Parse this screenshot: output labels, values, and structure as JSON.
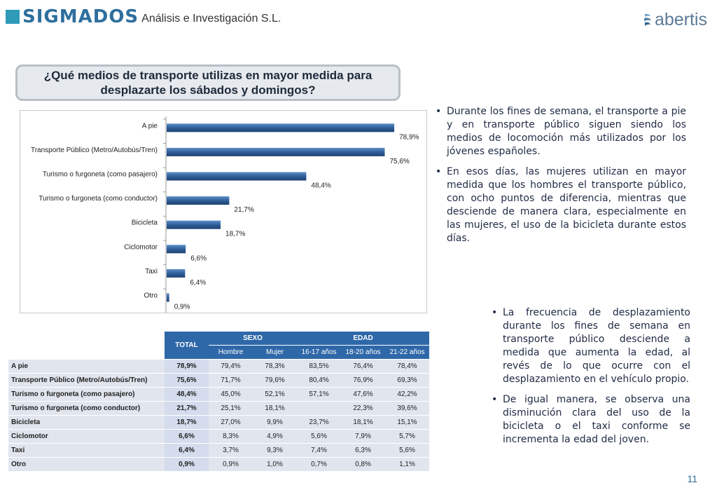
{
  "header": {
    "logo_text": "SIGMADOS",
    "logo_subtitle": "Análisis e Investigación S.L.",
    "brand_right": "abertis"
  },
  "question": "¿Qué medios de transporte utilizas en mayor medida para desplazarte los sábados y domingos?",
  "chart_data": {
    "type": "bar",
    "orientation": "horizontal",
    "categories": [
      "A pie",
      "Transporte Público (Metro/Autobús/Tren)",
      "Turismo o furgoneta (como pasajero)",
      "Turismo o furgoneta (como conductor)",
      "Bicicleta",
      "Ciclomotor",
      "Taxi",
      "Otro"
    ],
    "values": [
      78.9,
      75.6,
      48.4,
      21.7,
      18.7,
      6.6,
      6.4,
      0.9
    ],
    "value_labels": [
      "78,9%",
      "75,6%",
      "48,4%",
      "21,7%",
      "18,7%",
      "6,6%",
      "6,4%",
      "0,9%"
    ],
    "xlim": [
      0,
      100
    ],
    "grid": false,
    "bar_color": "#2f5f9a"
  },
  "bullets_top": [
    "Durante los fines de semana, el transporte a pie y en transporte público siguen siendo los medios de locomoción más utilizados por los jóvenes españoles.",
    "En esos días, las mujeres utilizan en mayor medida que los hombres el transporte público, con ocho puntos de diferencia, mientras que desciende de manera clara, especialmente en las mujeres, el uso de la bicicleta durante estos días."
  ],
  "bullets_bottom": [
    "La frecuencia de desplazamiento durante los fines de semana en transporte público desciende a medida que aumenta la edad, al revés de lo que ocurre con el desplazamiento en el vehículo propio.",
    "De igual manera, se observa una disminución clara del uso de la bicicleta o el taxi conforme se incrementa la edad del joven."
  ],
  "table": {
    "total_header": "TOTAL",
    "group_sexo": "SEXO",
    "group_edad": "EDAD",
    "subheaders": [
      "Hombre",
      "Mujer",
      "16-17 años",
      "18-20 años",
      "21-22 años"
    ],
    "rows": [
      {
        "label": "A pie",
        "total": "78,9%",
        "cells": [
          "79,4%",
          "78,3%",
          "83,5%",
          "76,4%",
          "78,4%"
        ]
      },
      {
        "label": "Transporte Público (Metro/Autobús/Tren)",
        "total": "75,6%",
        "cells": [
          "71,7%",
          "79,6%",
          "80,4%",
          "76,9%",
          "69,3%"
        ]
      },
      {
        "label": "Turismo o furgoneta (como pasajero)",
        "total": "48,4%",
        "cells": [
          "45,0%",
          "52,1%",
          "57,1%",
          "47,6%",
          "42,2%"
        ]
      },
      {
        "label": "Turismo o furgoneta (como conductor)",
        "total": "21,7%",
        "cells": [
          "25,1%",
          "18,1%",
          "",
          "22,3%",
          "39,6%"
        ]
      },
      {
        "label": "Bicicleta",
        "total": "18,7%",
        "cells": [
          "27,0%",
          "9,9%",
          "23,7%",
          "18,1%",
          "15,1%"
        ]
      },
      {
        "label": "Ciclomotor",
        "total": "6,6%",
        "cells": [
          "8,3%",
          "4,9%",
          "5,6%",
          "7,9%",
          "5,7%"
        ]
      },
      {
        "label": "Taxi",
        "total": "6,4%",
        "cells": [
          "3,7%",
          "9,3%",
          "7,4%",
          "6,3%",
          "5,6%"
        ]
      },
      {
        "label": "Otro",
        "total": "0,9%",
        "cells": [
          "0,9%",
          "1,0%",
          "0,7%",
          "0,8%",
          "1,1%"
        ]
      }
    ]
  },
  "page_number": "11"
}
